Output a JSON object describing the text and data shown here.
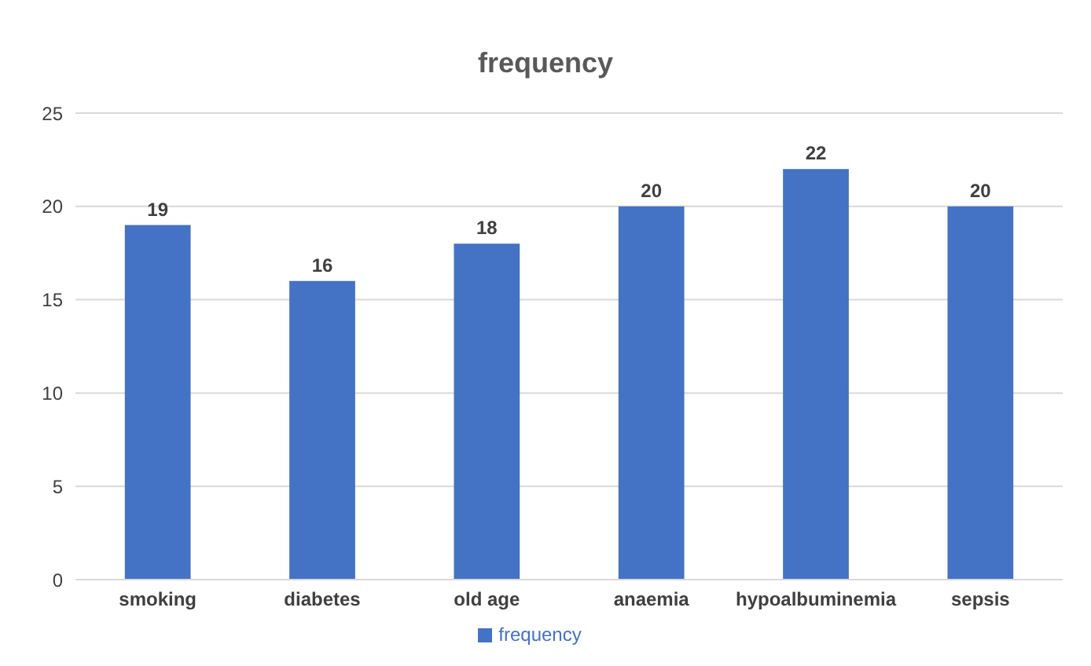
{
  "chart_data": {
    "type": "bar",
    "title": "frequency",
    "categories": [
      "smoking",
      "diabetes",
      "old age",
      "anaemia",
      "hypoalbuminemia",
      "sepsis"
    ],
    "series": [
      {
        "name": "frequency",
        "color": "#4472c4",
        "values": [
          19,
          16,
          18,
          20,
          22,
          20
        ]
      }
    ],
    "ylim": [
      0,
      25
    ],
    "yticks": [
      0,
      5,
      10,
      15,
      20,
      25
    ],
    "grid": "y",
    "legend": "bottom",
    "data_labels": true
  }
}
